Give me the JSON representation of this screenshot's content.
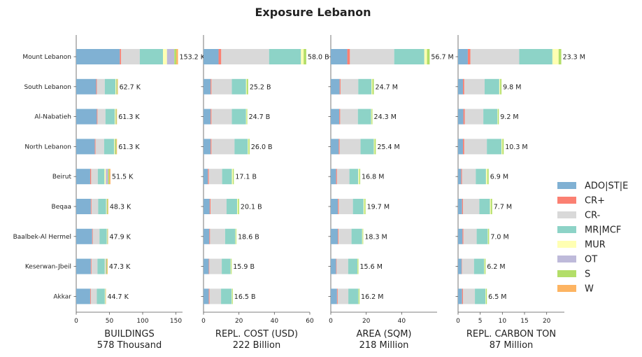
{
  "chart_data": {
    "type": "bar",
    "orientation": "horizontal-stacked",
    "title": "Exposure Lebanon",
    "categories": [
      "Mount Lebanon",
      "South Lebanon",
      "Al-Nabatieh",
      "North Lebanon",
      "Beirut",
      "Beqaa",
      "Baalbek-Al Hermel",
      "Keserwan-Jbeil",
      "Akkar"
    ],
    "legend": {
      "placement": "right",
      "entries": [
        {
          "name": "ADO|ST|E",
          "color": "#80b1d3"
        },
        {
          "name": "CR+",
          "color": "#fb8072"
        },
        {
          "name": "CR-",
          "color": "#d9d9d9"
        },
        {
          "name": "MR|MCF",
          "color": "#8dd3c7"
        },
        {
          "name": "MUR",
          "color": "#ffffb3"
        },
        {
          "name": "OT",
          "color": "#bebada"
        },
        {
          "name": "S",
          "color": "#b3de69"
        },
        {
          "name": "W",
          "color": "#fdb462"
        }
      ]
    },
    "panels": [
      {
        "xlabel": "BUILDINGS",
        "xlabel_sub": "578 Thousand",
        "xlim": [
          0,
          160
        ],
        "ticks": [
          0,
          50,
          100,
          150
        ],
        "totals": [
          "153.2 K",
          "62.7 K",
          "61.3 K",
          "61.3 K",
          "51.5 K",
          "48.3 K",
          "47.9 K",
          "47.3 K",
          "44.7 K"
        ],
        "segments": [
          [
            65.6,
            2.0,
            28.0,
            35.0,
            6.0,
            11.0,
            3.0,
            2.6
          ],
          [
            30.0,
            1.0,
            12.0,
            16.0,
            1.0,
            0.4,
            1.5,
            0.8
          ],
          [
            31.0,
            1.0,
            12.0,
            14.0,
            1.0,
            0.4,
            1.2,
            0.7
          ],
          [
            28.0,
            1.0,
            13.0,
            15.0,
            1.0,
            0.4,
            2.0,
            0.9
          ],
          [
            21.0,
            1.5,
            10.0,
            10.0,
            2.0,
            3.5,
            1.5,
            2.0
          ],
          [
            22.0,
            1.0,
            10.0,
            12.0,
            0.8,
            0.5,
            1.2,
            0.8
          ],
          [
            24.0,
            1.0,
            10.0,
            11.0,
            0.5,
            0.3,
            0.6,
            0.5
          ],
          [
            22.0,
            1.0,
            9.0,
            11.0,
            1.0,
            1.2,
            1.2,
            0.9
          ],
          [
            21.0,
            1.0,
            9.0,
            12.0,
            0.5,
            0.3,
            0.5,
            0.4
          ]
        ]
      },
      {
        "xlabel": "REPL. COST (USD)",
        "xlabel_sub": "222 Billion",
        "xlim": [
          0,
          60
        ],
        "ticks": [
          0,
          20,
          40,
          60
        ],
        "totals": [
          "58.0 B",
          "25.2 B",
          "24.7 B",
          "26.0 B",
          "17.1 B",
          "20.1 B",
          "18.6 B",
          "15.9 B",
          "16.5 B"
        ],
        "segments": [
          [
            8.5,
            1.5,
            27.0,
            18.0,
            1.5,
            0.0,
            1.5,
            0.0
          ],
          [
            4.0,
            0.5,
            11.5,
            8.0,
            0.4,
            0.0,
            0.8,
            0.0
          ],
          [
            4.0,
            0.5,
            11.5,
            8.0,
            0.3,
            0.0,
            0.4,
            0.0
          ],
          [
            4.0,
            0.5,
            13.0,
            7.5,
            0.4,
            0.0,
            0.6,
            0.0
          ],
          [
            2.5,
            0.5,
            7.5,
            5.5,
            0.6,
            0.0,
            0.5,
            0.0
          ],
          [
            3.5,
            0.5,
            9.0,
            6.0,
            0.5,
            0.0,
            0.6,
            0.0
          ],
          [
            3.3,
            0.4,
            8.5,
            5.8,
            0.3,
            0.0,
            0.3,
            0.0
          ],
          [
            3.0,
            0.3,
            7.0,
            5.0,
            0.2,
            0.0,
            0.4,
            0.0
          ],
          [
            3.0,
            0.4,
            6.5,
            6.0,
            0.2,
            0.0,
            0.4,
            0.0
          ]
        ]
      },
      {
        "xlabel": "AREA (SQM)",
        "xlabel_sub": "218 Million",
        "xlim": [
          0,
          60
        ],
        "ticks": [
          0,
          20,
          40
        ],
        "totals": [
          "56.7 M",
          "24.7 M",
          "24.3 M",
          "25.4 M",
          "16.8 M",
          "19.7 M",
          "18.3 M",
          "15.6 M",
          "16.2 M"
        ],
        "segments": [
          [
            9.3,
            1.5,
            25.0,
            17.0,
            1.5,
            0.0,
            1.5,
            0.0
          ],
          [
            5.0,
            0.5,
            10.0,
            7.5,
            0.5,
            0.0,
            0.8,
            0.0
          ],
          [
            4.8,
            0.5,
            10.0,
            7.5,
            0.3,
            0.0,
            0.4,
            0.0
          ],
          [
            4.5,
            0.5,
            11.8,
            7.5,
            0.4,
            0.0,
            0.7,
            0.0
          ],
          [
            3.0,
            0.5,
            7.0,
            5.0,
            0.6,
            0.0,
            0.5,
            0.0
          ],
          [
            4.0,
            0.5,
            8.0,
            6.0,
            0.5,
            0.0,
            0.6,
            0.0
          ],
          [
            4.0,
            0.4,
            7.3,
            6.0,
            0.3,
            0.0,
            0.3,
            0.0
          ],
          [
            3.0,
            0.3,
            6.5,
            5.2,
            0.2,
            0.0,
            0.4,
            0.0
          ],
          [
            3.5,
            0.4,
            6.0,
            5.7,
            0.2,
            0.0,
            0.4,
            0.0
          ]
        ]
      },
      {
        "xlabel": "REPL. CARBON TON",
        "xlabel_sub": "87 Million",
        "xlim": [
          0,
          24
        ],
        "ticks": [
          0,
          5,
          10,
          15,
          20
        ],
        "totals": [
          "23.3 M",
          "9.8 M",
          "9.2 M",
          "10.3 M",
          "6.9 M",
          "7.7 M",
          "7.0 M",
          "6.2 M",
          "6.5 M"
        ],
        "segments": [
          [
            2.2,
            0.6,
            11.0,
            7.5,
            1.4,
            0.0,
            0.6,
            0.0
          ],
          [
            1.1,
            0.3,
            4.6,
            3.3,
            0.2,
            0.0,
            0.3,
            0.0
          ],
          [
            1.2,
            0.3,
            4.2,
            3.2,
            0.1,
            0.0,
            0.2,
            0.0
          ],
          [
            1.1,
            0.3,
            5.1,
            3.3,
            0.2,
            0.0,
            0.3,
            0.0
          ],
          [
            0.7,
            0.2,
            3.1,
            2.3,
            0.3,
            0.0,
            0.3,
            0.0
          ],
          [
            0.9,
            0.2,
            3.7,
            2.4,
            0.2,
            0.0,
            0.3,
            0.0
          ],
          [
            1.0,
            0.2,
            3.0,
            2.5,
            0.1,
            0.0,
            0.2,
            0.0
          ],
          [
            0.8,
            0.1,
            2.7,
            2.3,
            0.1,
            0.0,
            0.2,
            0.0
          ],
          [
            0.9,
            0.2,
            2.7,
            2.4,
            0.1,
            0.0,
            0.2,
            0.0
          ]
        ]
      }
    ]
  }
}
